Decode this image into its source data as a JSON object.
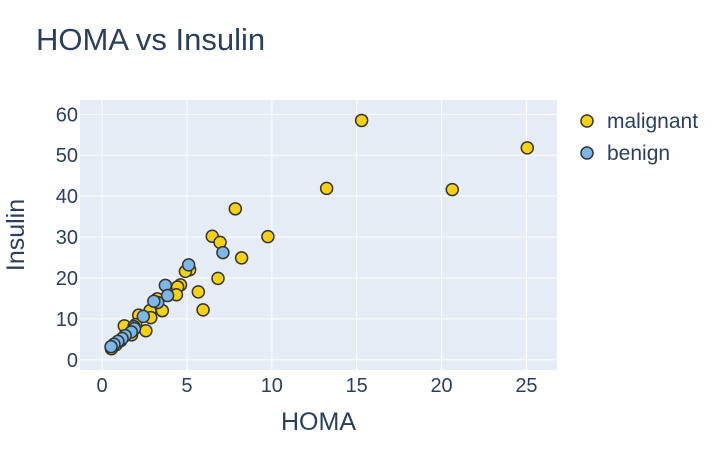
{
  "chart_data": {
    "type": "scatter",
    "title": "HOMA vs Insulin",
    "xlabel": "HOMA",
    "ylabel": "Insulin",
    "xlim": [
      -1.3,
      26.8
    ],
    "ylim": [
      -2.5,
      63.5
    ],
    "xticks": [
      0,
      5,
      10,
      15,
      20,
      25
    ],
    "yticks": [
      0,
      10,
      20,
      30,
      40,
      50,
      60
    ],
    "grid": true,
    "legend_position": "top-right",
    "colors": {
      "plot_bg": "#e5ecf6",
      "grid": "#ffffff",
      "marker_edge": "#333333"
    },
    "series": [
      {
        "name": "malignant",
        "color": "#f8d20f",
        "points": [
          [
            25.05,
            51.8
          ],
          [
            15.29,
            58.5
          ],
          [
            20.63,
            41.6
          ],
          [
            13.23,
            41.9
          ],
          [
            9.77,
            30.1
          ],
          [
            7.85,
            36.9
          ],
          [
            8.22,
            24.9
          ],
          [
            6.49,
            30.2
          ],
          [
            6.95,
            28.7
          ],
          [
            6.83,
            19.9
          ],
          [
            5.67,
            16.6
          ],
          [
            5.95,
            12.2
          ],
          [
            5.16,
            22.0
          ],
          [
            4.91,
            21.6
          ],
          [
            4.62,
            18.3
          ],
          [
            4.45,
            17.8
          ],
          [
            4.38,
            15.9
          ],
          [
            3.55,
            12.0
          ],
          [
            3.25,
            14.9
          ],
          [
            2.82,
            12.0
          ],
          [
            2.87,
            10.3
          ],
          [
            2.58,
            7.1
          ],
          [
            2.16,
            10.9
          ],
          [
            1.98,
            8.6
          ],
          [
            1.74,
            6.1
          ],
          [
            1.65,
            7.5
          ],
          [
            1.42,
            6.6
          ],
          [
            1.31,
            8.3
          ],
          [
            1.1,
            4.7
          ],
          [
            0.83,
            3.7
          ],
          [
            0.55,
            2.7
          ]
        ]
      },
      {
        "name": "benign",
        "color": "#7ab8e8",
        "points": [
          [
            5.1,
            23.2
          ],
          [
            7.12,
            26.2
          ],
          [
            3.73,
            18.2
          ],
          [
            3.86,
            15.7
          ],
          [
            3.28,
            14.0
          ],
          [
            3.05,
            14.3
          ],
          [
            2.43,
            10.6
          ],
          [
            1.88,
            8.1
          ],
          [
            1.91,
            7.6
          ],
          [
            1.72,
            6.8
          ],
          [
            1.36,
            5.9
          ],
          [
            1.18,
            5.2
          ],
          [
            0.93,
            4.5
          ],
          [
            0.7,
            3.8
          ],
          [
            0.53,
            3.2
          ]
        ]
      }
    ]
  }
}
